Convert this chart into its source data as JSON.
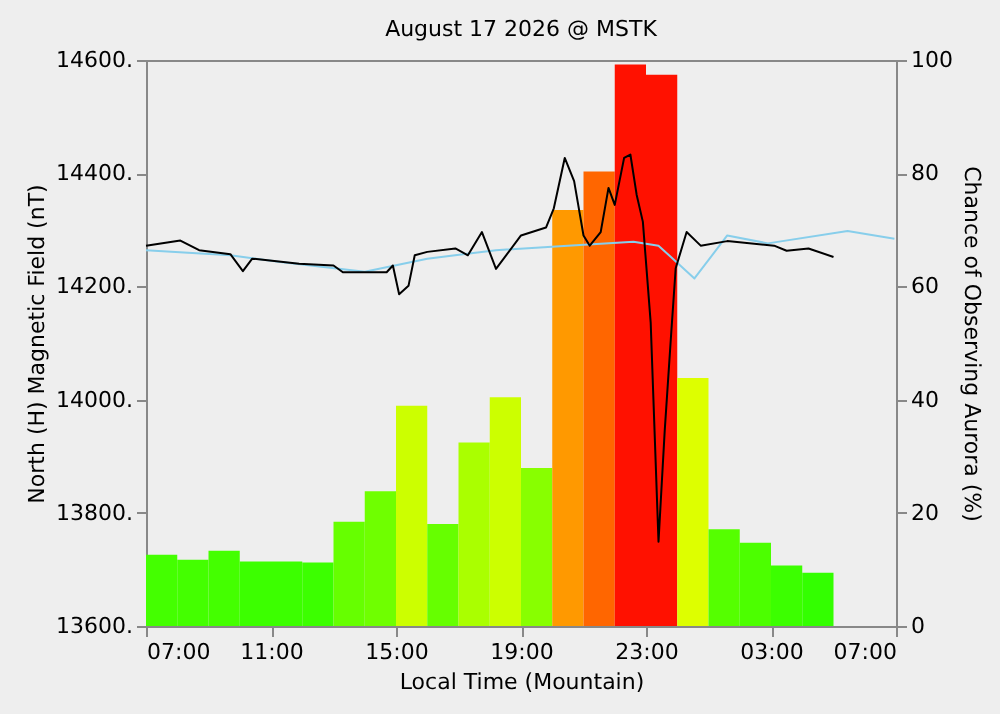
{
  "chart_data": {
    "type": "bar",
    "title": "August 17 2026 @ MSTK",
    "xlabel": "Local Time (Mountain)",
    "ylabel": "North (H) Magnetic Field (nT)",
    "y2label": "Chance of Observing Aurora (%)",
    "xlim": [
      "2026-08-17T07:00",
      "2026-08-18T07:00"
    ],
    "xticks": [
      {
        "value": "2026-08-17T07:00",
        "label": "07:00"
      },
      {
        "value": "2026-08-17T11:00",
        "label": "11:00"
      },
      {
        "value": "2026-08-17T15:00",
        "label": "15:00"
      },
      {
        "value": "2026-08-17T19:00",
        "label": "19:00"
      },
      {
        "value": "2026-08-17T23:00",
        "label": "23:00"
      },
      {
        "value": "2026-08-18T03:00",
        "label": "03:00"
      },
      {
        "value": "2026-08-18T07:00",
        "label": "07:00"
      }
    ],
    "ylim": [
      13600,
      14600
    ],
    "yticks": [
      {
        "value": 13600,
        "label": "13600."
      },
      {
        "value": 13800,
        "label": "13800."
      },
      {
        "value": 14000,
        "label": "14000."
      },
      {
        "value": 14200,
        "label": "14200."
      },
      {
        "value": 14400,
        "label": "14400."
      },
      {
        "value": 14600,
        "label": "14600."
      }
    ],
    "y2lim": [
      0,
      100
    ],
    "y2ticks": [
      0,
      20,
      40,
      60,
      80,
      100
    ],
    "grid": false,
    "series": [
      {
        "axis": "y2",
        "x": [
          "2026-08-17T07:30",
          "2026-08-17T08:30",
          "2026-08-17T09:30",
          "2026-08-17T10:30",
          "2026-08-17T11:30",
          "2026-08-17T12:30",
          "2026-08-17T13:30",
          "2026-08-17T14:30",
          "2026-08-17T15:30",
          "2026-08-17T16:30",
          "2026-08-17T17:30",
          "2026-08-17T18:30",
          "2026-08-17T19:30",
          "2026-08-17T20:30",
          "2026-08-17T21:30",
          "2026-08-17T22:30",
          "2026-08-17T23:30",
          "2026-08-18T00:30",
          "2026-08-18T01:30",
          "2026-08-18T02:30",
          "2026-08-18T03:30",
          "2026-08-18T04:30"
        ],
        "values": [
          12.6,
          11.7,
          13.3,
          11.4,
          11.4,
          11.2,
          18.4,
          23.8,
          38.9,
          18.0,
          32.4,
          40.4,
          27.9,
          73.5,
          80.3,
          99.2,
          97.4,
          43.8,
          17.1,
          14.7,
          10.7,
          9.4
        ],
        "colors": [
          "#44ff00",
          "#44ff00",
          "#44ff00",
          "#3cff00",
          "#3cff00",
          "#3cff00",
          "#66ff00",
          "#6fff00",
          "#ccff00",
          "#66ff00",
          "#aaff00",
          "#ccff00",
          "#88ff00",
          "#ff9900",
          "#ff6600",
          "#ff1100",
          "#ff1100",
          "#ddff00",
          "#55ff00",
          "#4cff00",
          "#3cff00",
          "#33ff00"
        ]
      },
      {
        "type": "line",
        "axis": "y",
        "color": "#87ceeb",
        "x": [
          "2026-08-17T07:00",
          "2026-08-17T09:42",
          "2026-08-17T11:18",
          "2026-08-17T14:00",
          "2026-08-17T16:00",
          "2026-08-17T18:12",
          "2026-08-17T20:30",
          "2026-08-17T22:36",
          "2026-08-17T23:24",
          "2026-08-18T00:33",
          "2026-08-18T01:36",
          "2026-08-18T02:54",
          "2026-08-18T05:27",
          "2026-08-18T06:57"
        ],
        "values": [
          14264,
          14255,
          14243,
          14226,
          14249,
          14264,
          14272,
          14279,
          14272,
          14214,
          14290,
          14276,
          14298,
          14284
        ]
      },
      {
        "type": "line",
        "axis": "y",
        "color": "#000000",
        "x": [
          "2026-08-17T07:00",
          "2026-08-17T08:06",
          "2026-08-17T08:42",
          "2026-08-17T09:42",
          "2026-08-17T10:06",
          "2026-08-17T10:24",
          "2026-08-17T11:54",
          "2026-08-17T13:00",
          "2026-08-17T13:18",
          "2026-08-17T14:42",
          "2026-08-17T14:54",
          "2026-08-17T15:06",
          "2026-08-17T15:24",
          "2026-08-17T15:36",
          "2026-08-17T16:00",
          "2026-08-17T16:54",
          "2026-08-17T17:18",
          "2026-08-17T17:45",
          "2026-08-17T18:12",
          "2026-08-17T19:00",
          "2026-08-17T19:48",
          "2026-08-17T20:03",
          "2026-08-17T20:24",
          "2026-08-17T20:42",
          "2026-08-17T21:00",
          "2026-08-17T21:12",
          "2026-08-17T21:33",
          "2026-08-17T21:48",
          "2026-08-17T22:00",
          "2026-08-17T22:18",
          "2026-08-17T22:30",
          "2026-08-17T22:42",
          "2026-08-17T22:54",
          "2026-08-17T23:09",
          "2026-08-17T23:24",
          "2026-08-17T23:36",
          "2026-08-17T23:48",
          "2026-08-17T23:57",
          "2026-08-18T00:18",
          "2026-08-18T00:45",
          "2026-08-18T01:36",
          "2026-08-18T03:06",
          "2026-08-18T03:30",
          "2026-08-18T04:12",
          "2026-08-18T05:00"
        ],
        "values": [
          14272,
          14281,
          14264,
          14257,
          14227,
          14249,
          14240,
          14237,
          14225,
          14225,
          14237,
          14186,
          14201,
          14255,
          14261,
          14267,
          14255,
          14296,
          14231,
          14290,
          14304,
          14338,
          14427,
          14386,
          14290,
          14272,
          14296,
          14374,
          14344,
          14427,
          14433,
          14362,
          14314,
          14136,
          13749,
          13946,
          14112,
          14232,
          14296,
          14272,
          14280,
          14272,
          14263,
          14267,
          14252
        ]
      }
    ]
  }
}
